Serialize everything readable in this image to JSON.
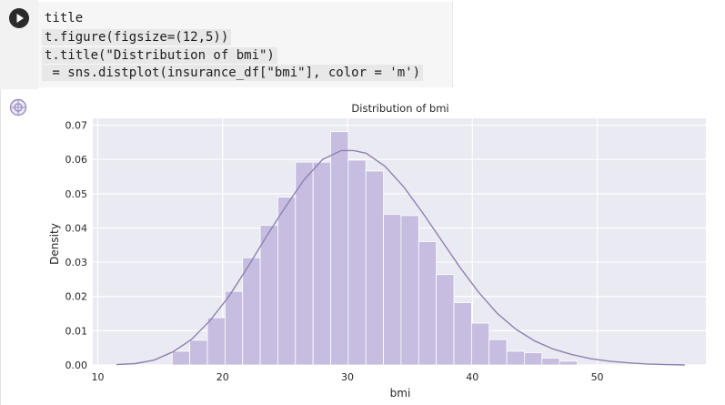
{
  "code": {
    "lines": [
      "title",
      "t.figure(figsize=(12,5))",
      "t.title(\"Distribution of bmi\")",
      " = sns.distplot(insurance_df[\"bmi\"], color = 'm')"
    ]
  },
  "icons": {
    "run": "play-icon",
    "output": "output-icon"
  },
  "colors": {
    "bar": "#c6bde0",
    "kde_line": "#8f81b1",
    "plot_bg": "#eaeaf2",
    "grid": "#ffffff"
  },
  "chart_data": {
    "type": "bar",
    "title": "Distribution of bmi",
    "xlabel": "bmi",
    "ylabel": "Density",
    "xlim": [
      9.6,
      58.7
    ],
    "ylim": [
      0,
      0.072
    ],
    "xticks": [
      10,
      20,
      30,
      40,
      50
    ],
    "yticks": [
      0.0,
      0.01,
      0.02,
      0.03,
      0.04,
      0.05,
      0.06,
      0.07
    ],
    "ytick_labels": [
      "0.00",
      "0.01",
      "0.02",
      "0.03",
      "0.04",
      "0.05",
      "0.06",
      "0.07"
    ],
    "grid": true,
    "bins": {
      "start": 15.96,
      "width": 1.41,
      "values": [
        0.004,
        0.0072,
        0.0138,
        0.0215,
        0.0313,
        0.0408,
        0.049,
        0.0592,
        0.0592,
        0.0681,
        0.0598,
        0.0566,
        0.044,
        0.0436,
        0.036,
        0.0264,
        0.0182,
        0.0122,
        0.0074,
        0.004,
        0.0036,
        0.002,
        0.0011
      ]
    },
    "kde": {
      "x": [
        11.5,
        13,
        14.5,
        16,
        17.5,
        19,
        20.5,
        22,
        23.5,
        25,
        26.5,
        28,
        29.5,
        30.5,
        31.5,
        33,
        34.5,
        36,
        37.5,
        39,
        40.5,
        42,
        43.5,
        45,
        46.5,
        48,
        49.5,
        51,
        52.5,
        54,
        55.5,
        57
      ],
      "y": [
        0.0001,
        0.0004,
        0.0014,
        0.0038,
        0.0074,
        0.013,
        0.02,
        0.0285,
        0.0375,
        0.046,
        0.054,
        0.06,
        0.0626,
        0.0626,
        0.0618,
        0.058,
        0.052,
        0.0445,
        0.0365,
        0.0285,
        0.0212,
        0.015,
        0.0104,
        0.007,
        0.0046,
        0.003,
        0.0018,
        0.0011,
        0.0006,
        0.0003,
        0.0001,
        0.0
      ]
    }
  }
}
